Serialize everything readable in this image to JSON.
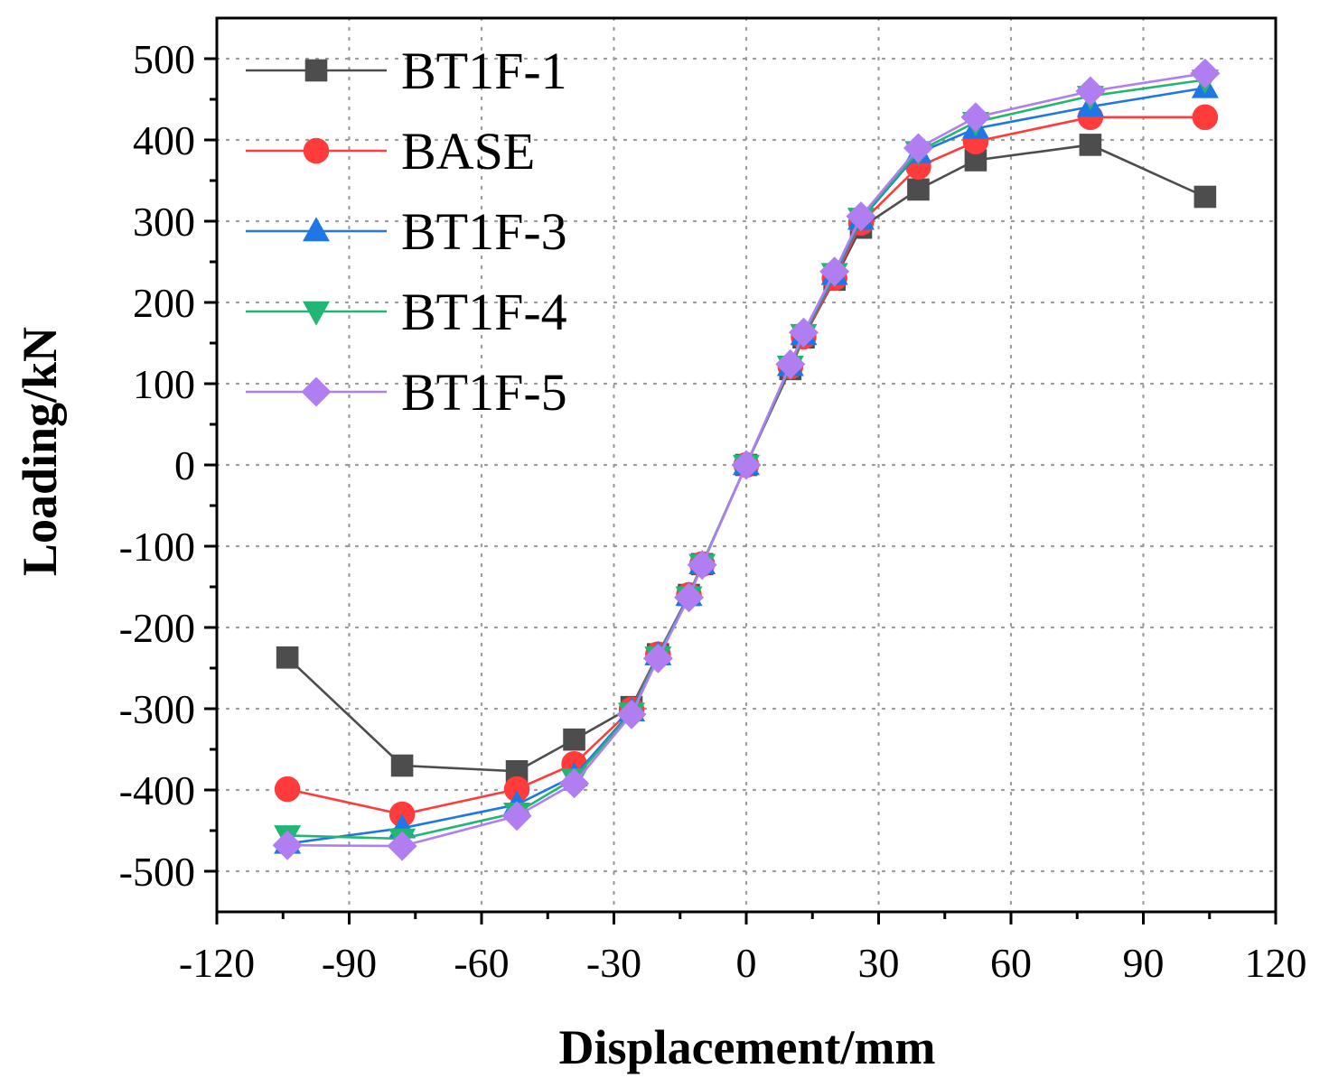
{
  "chart_data": {
    "type": "line",
    "title": "",
    "xlabel": "Displacement/mm",
    "ylabel": "Loading/kN",
    "xlim": [
      -120,
      120
    ],
    "ylim": [
      -550,
      550
    ],
    "xticks": [
      -120,
      -90,
      -60,
      -30,
      0,
      30,
      60,
      90,
      120
    ],
    "yticks": [
      -500,
      -400,
      -300,
      -200,
      -100,
      0,
      100,
      200,
      300,
      400,
      500
    ],
    "xtick_labels": [
      "-120",
      "-90",
      "-60",
      "-30",
      "0",
      "30",
      "60",
      "90",
      "120"
    ],
    "ytick_labels": [
      "-500",
      "-400",
      "-300",
      "-200",
      "-100",
      "0",
      "100",
      "200",
      "300",
      "400",
      "500"
    ],
    "grid": true,
    "legend_position": "top-left",
    "series": [
      {
        "name": "BT1F-1",
        "color": "#4d4d4d",
        "marker": "square",
        "x": [
          -104,
          -78,
          -52,
          -39,
          -26,
          -20,
          -13,
          -10,
          0,
          10,
          13,
          20,
          26,
          39,
          52,
          78,
          104
        ],
        "y": [
          -237,
          -370,
          -377,
          -338,
          -298,
          -233,
          -160,
          -122,
          0,
          118,
          157,
          228,
          292,
          339,
          375,
          394,
          330
        ]
      },
      {
        "name": "BASE",
        "color": "#ff3b3b",
        "marker": "circle",
        "x": [
          -104,
          -78,
          -52,
          -39,
          -26,
          -20,
          -13,
          -10,
          0,
          10,
          13,
          20,
          26,
          39,
          52,
          78,
          104
        ],
        "y": [
          -399,
          -430,
          -399,
          -368,
          -301,
          -233,
          -160,
          -122,
          0,
          121,
          158,
          230,
          298,
          367,
          398,
          428,
          428
        ]
      },
      {
        "name": "BT1F-3",
        "color": "#1f77e6",
        "marker": "triangle-up",
        "x": [
          -104,
          -78,
          -52,
          -39,
          -26,
          -20,
          -13,
          -10,
          0,
          10,
          13,
          20,
          26,
          39,
          52,
          78,
          104
        ],
        "y": [
          -466,
          -447,
          -418,
          -383,
          -303,
          -234,
          -161,
          -122,
          0,
          122,
          160,
          234,
          302,
          384,
          414,
          441,
          464
        ]
      },
      {
        "name": "BT1F-4",
        "color": "#22b573",
        "marker": "triangle-down",
        "x": [
          -104,
          -78,
          -52,
          -39,
          -26,
          -20,
          -13,
          -10,
          0,
          10,
          13,
          20,
          26,
          39,
          52,
          78,
          104
        ],
        "y": [
          -456,
          -460,
          -428,
          -386,
          -305,
          -236,
          -162,
          -122,
          0,
          122,
          161,
          236,
          304,
          386,
          422,
          454,
          474
        ]
      },
      {
        "name": "BT1F-5",
        "color": "#b07ef0",
        "marker": "diamond",
        "x": [
          -104,
          -78,
          -52,
          -39,
          -26,
          -20,
          -13,
          -10,
          0,
          10,
          13,
          20,
          26,
          39,
          52,
          78,
          104
        ],
        "y": [
          -468,
          -469,
          -432,
          -392,
          -307,
          -238,
          -163,
          -123,
          0,
          124,
          163,
          238,
          306,
          390,
          428,
          460,
          482
        ]
      }
    ]
  }
}
